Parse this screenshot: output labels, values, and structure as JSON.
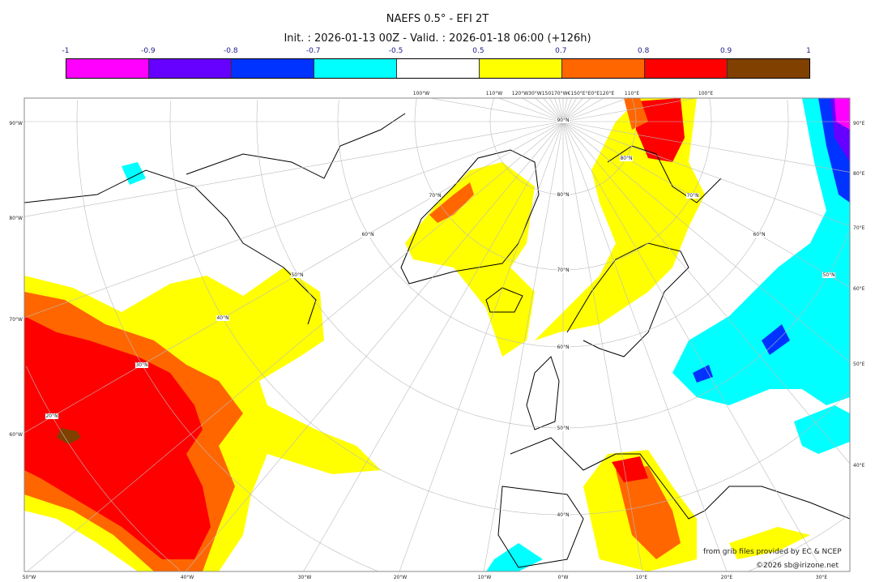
{
  "title": "NAEFS 0.5° - EFI 2T",
  "subtitle": "Init. : 2026-01-13 00Z - Valid. : 2026-01-18 06:00 (+126h)",
  "legend": {
    "labels": [
      "-1",
      "-0.9",
      "-0.8",
      "-0.7",
      "-0.5",
      "0.5",
      "0.7",
      "0.8",
      "0.9",
      "1"
    ],
    "colors": [
      "#ff00ff",
      "#6600ff",
      "#0033ff",
      "#00ffff",
      "#ffffff",
      "#ffff00",
      "#ff6600",
      "#ff0000",
      "#804000"
    ]
  },
  "map": {
    "projection": "polar stereographic",
    "left_labels": [
      "90°W",
      "80°W",
      "70°W",
      "60°W"
    ],
    "bottom_labels": [
      "50°W",
      "40°W",
      "30°W",
      "20°W",
      "10°W",
      "0°W",
      "10°E",
      "20°E",
      "30°E"
    ],
    "right_labels": [
      "90°E",
      "80°E",
      "70°E",
      "60°E",
      "50°E",
      "40°E"
    ],
    "top_labels": [
      "100°W",
      "110°W",
      "120°W30°W150170°W€150°E°E0°E120°E",
      "110°E",
      "100°E"
    ],
    "lat_labels": [
      "90°N",
      "80°N",
      "70°N",
      "60°N",
      "50°N",
      "40°N",
      "70°N",
      "60°N",
      "50°N",
      "40°N",
      "30°N",
      "20°N",
      "80°N",
      "70°N",
      "60°N",
      "50°N"
    ]
  },
  "credits": {
    "source": "from grib files provided by EC & NCEP",
    "copyright": "©2026 sb@irizone.net"
  }
}
